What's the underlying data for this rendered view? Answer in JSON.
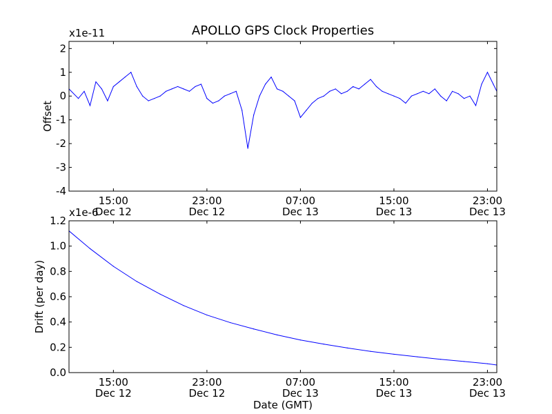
{
  "chart_data": [
    {
      "type": "line",
      "title": "APOLLO GPS Clock Properties",
      "xlabel": "",
      "ylabel": "Offset",
      "y_multiplier": "x1e-11",
      "ylim": [
        -4,
        2.3
      ],
      "yticks": [
        {
          "value": 2,
          "label": "2"
        },
        {
          "value": 1,
          "label": "1"
        },
        {
          "value": 0,
          "label": "0"
        },
        {
          "value": -1,
          "label": "-1"
        },
        {
          "value": -2,
          "label": "-2"
        },
        {
          "value": -3,
          "label": "-3"
        },
        {
          "value": -4,
          "label": "-4"
        }
      ],
      "xlim_hours": [
        11.2,
        47.8
      ],
      "xticks": [
        {
          "hour": 15,
          "time": "15:00",
          "date": "Dec 12"
        },
        {
          "hour": 23,
          "time": "23:00",
          "date": "Dec 12"
        },
        {
          "hour": 31,
          "time": "07:00",
          "date": "Dec 13"
        },
        {
          "hour": 39,
          "time": "15:00",
          "date": "Dec 13"
        },
        {
          "hour": 47,
          "time": "23:00",
          "date": "Dec 13"
        }
      ],
      "series": [
        {
          "name": "Offset",
          "color": "#0000ff",
          "x_hours": [
            11.2,
            12.0,
            12.5,
            13.0,
            13.5,
            14.0,
            14.5,
            15.0,
            15.5,
            16.0,
            16.5,
            17.0,
            17.5,
            18.0,
            18.5,
            19.0,
            19.5,
            20.0,
            20.5,
            21.0,
            21.5,
            22.0,
            22.5,
            23.0,
            23.5,
            24.0,
            24.5,
            25.0,
            25.5,
            26.0,
            26.5,
            27.0,
            27.5,
            28.0,
            28.5,
            29.0,
            29.5,
            30.0,
            30.5,
            31.0,
            31.5,
            32.0,
            32.5,
            33.0,
            33.5,
            34.0,
            34.5,
            35.0,
            35.5,
            36.0,
            36.5,
            37.0,
            37.5,
            38.0,
            38.5,
            39.0,
            39.5,
            40.0,
            40.5,
            41.0,
            41.5,
            42.0,
            42.5,
            43.0,
            43.5,
            44.0,
            44.5,
            45.0,
            45.5,
            46.0,
            46.5,
            47.0,
            47.5,
            47.8
          ],
          "values": [
            0.3,
            -0.1,
            0.2,
            -0.4,
            0.6,
            0.3,
            -0.2,
            0.4,
            0.6,
            0.8,
            1.0,
            0.4,
            0.0,
            -0.2,
            -0.1,
            0.0,
            0.2,
            0.3,
            0.4,
            0.3,
            0.2,
            0.4,
            0.5,
            -0.1,
            -0.3,
            -0.2,
            0.0,
            0.1,
            0.2,
            -0.6,
            -2.2,
            -0.8,
            0.0,
            0.5,
            0.8,
            0.3,
            0.2,
            0.0,
            -0.2,
            -0.9,
            -0.6,
            -0.3,
            -0.1,
            0.0,
            0.2,
            0.3,
            0.1,
            0.2,
            0.4,
            0.3,
            0.5,
            0.7,
            0.4,
            0.2,
            0.1,
            0.0,
            -0.1,
            -0.3,
            0.0,
            0.1,
            0.2,
            0.1,
            0.3,
            0.0,
            -0.2,
            0.2,
            0.1,
            -0.1,
            0.0,
            -0.4,
            0.5,
            1.0,
            0.5,
            0.2
          ]
        }
      ]
    },
    {
      "type": "line",
      "title": "",
      "xlabel": "Date (GMT)",
      "ylabel": "Drift (per day)",
      "y_multiplier": "x1e-6",
      "ylim": [
        0.0,
        1.2
      ],
      "yticks": [
        {
          "value": 1.2,
          "label": "1.2"
        },
        {
          "value": 1.0,
          "label": "1.0"
        },
        {
          "value": 0.8,
          "label": "0.8"
        },
        {
          "value": 0.6,
          "label": "0.6"
        },
        {
          "value": 0.4,
          "label": "0.4"
        },
        {
          "value": 0.2,
          "label": "0.2"
        },
        {
          "value": 0.0,
          "label": "0.0"
        }
      ],
      "xlim_hours": [
        11.2,
        47.8
      ],
      "xticks": [
        {
          "hour": 15,
          "time": "15:00",
          "date": "Dec 12"
        },
        {
          "hour": 23,
          "time": "23:00",
          "date": "Dec 12"
        },
        {
          "hour": 31,
          "time": "07:00",
          "date": "Dec 13"
        },
        {
          "hour": 39,
          "time": "15:00",
          "date": "Dec 13"
        },
        {
          "hour": 47,
          "time": "23:00",
          "date": "Dec 13"
        }
      ],
      "series": [
        {
          "name": "Drift",
          "color": "#0000ff",
          "x_hours": [
            11.2,
            13.0,
            15.0,
            17.0,
            19.0,
            21.0,
            23.0,
            25.0,
            27.0,
            29.0,
            31.0,
            33.0,
            35.0,
            37.0,
            39.0,
            41.0,
            43.0,
            45.0,
            47.0,
            47.8
          ],
          "values": [
            1.12,
            0.98,
            0.84,
            0.72,
            0.62,
            0.53,
            0.455,
            0.395,
            0.345,
            0.298,
            0.258,
            0.225,
            0.195,
            0.168,
            0.145,
            0.125,
            0.105,
            0.088,
            0.07,
            0.06
          ]
        }
      ]
    }
  ]
}
